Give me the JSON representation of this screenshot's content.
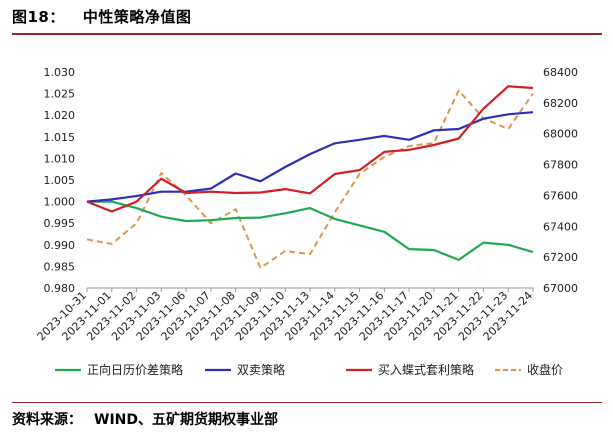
{
  "header": {
    "figure_no": "图18：",
    "title": "中性策略净值图"
  },
  "footer": {
    "source_label": "资料来源：",
    "source_text": "WIND、五矿期货期权事业部"
  },
  "chart_data": {
    "type": "line",
    "title": "中性策略净值图",
    "x": [
      "2023-10-31",
      "2023-11-01",
      "2023-11-02",
      "2023-11-03",
      "2023-11-06",
      "2023-11-07",
      "2023-11-08",
      "2023-11-09",
      "2023-11-10",
      "2023-11-13",
      "2023-11-14",
      "2023-11-15",
      "2023-11-16",
      "2023-11-17",
      "2023-11-20",
      "2023-11-21",
      "2023-11-22",
      "2023-11-23",
      "2023-11-24"
    ],
    "y_left": {
      "min": 0.98,
      "max": 1.03,
      "step": 0.005,
      "ticks": [
        "0.980",
        "0.985",
        "0.990",
        "0.995",
        "1.000",
        "1.005",
        "1.010",
        "1.015",
        "1.020",
        "1.025",
        "1.030"
      ]
    },
    "y_right": {
      "min": 67000,
      "max": 68400,
      "step": 200,
      "ticks": [
        "67000",
        "67200",
        "67400",
        "67600",
        "67800",
        "68000",
        "68200",
        "68400"
      ]
    },
    "series": [
      {
        "name": "正向日历价差策略",
        "axis": "left",
        "color": "#1faa4f",
        "dash": false,
        "values": [
          1.0,
          1.0,
          0.9985,
          0.9965,
          0.9955,
          0.9957,
          0.9962,
          0.9963,
          0.9973,
          0.9985,
          0.996,
          0.9945,
          0.993,
          0.989,
          0.9888,
          0.9865,
          0.9905,
          0.99,
          0.9883
        ]
      },
      {
        "name": "双卖策略",
        "axis": "left",
        "color": "#2e2eb8",
        "dash": false,
        "values": [
          1.0,
          1.0005,
          1.0013,
          1.0023,
          1.0023,
          1.003,
          1.0065,
          1.0047,
          1.008,
          1.011,
          1.0135,
          1.0143,
          1.0152,
          1.0143,
          1.0165,
          1.0168,
          1.0192,
          1.0202,
          1.0207
        ]
      },
      {
        "name": "买入蝶式套利策略",
        "axis": "left",
        "color": "#d21f26",
        "dash": false,
        "values": [
          1.0,
          0.9977,
          1.0,
          1.0053,
          1.002,
          1.0023,
          1.002,
          1.0021,
          1.0029,
          1.0019,
          1.0064,
          1.0073,
          1.0115,
          1.012,
          1.0131,
          1.0146,
          1.0215,
          1.0267,
          1.0263
        ]
      },
      {
        "name": "收盘价",
        "axis": "right",
        "color": "#e0944a",
        "dash": true,
        "values": [
          67315,
          67285,
          67420,
          67745,
          67600,
          67420,
          67510,
          67130,
          67240,
          67220,
          67490,
          67740,
          67850,
          67920,
          67940,
          68280,
          68100,
          68030,
          68260
        ]
      }
    ],
    "legend_position": "bottom",
    "grid": false
  }
}
